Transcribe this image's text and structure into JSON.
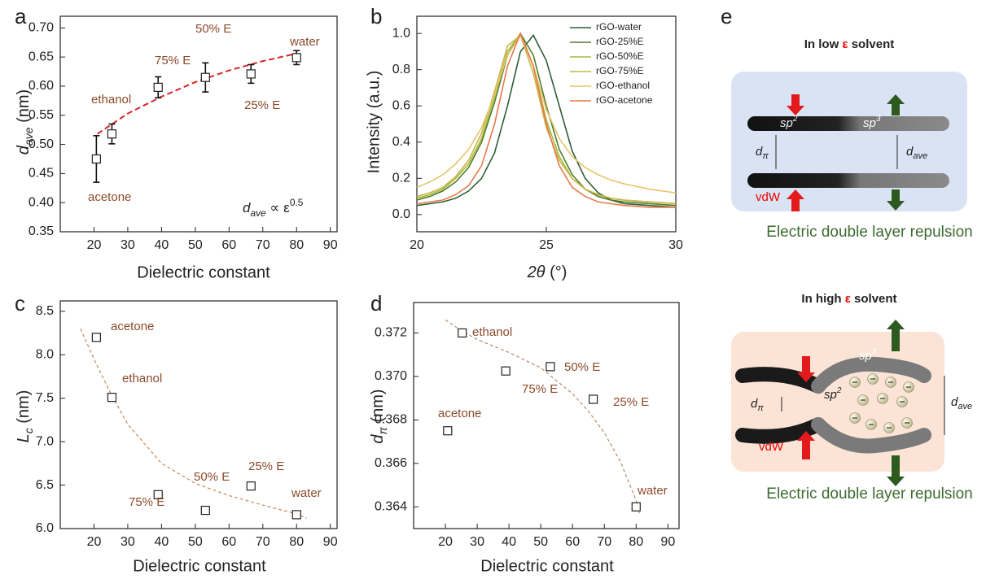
{
  "chart_data": [
    {
      "type": "scatter",
      "panel_label": "a",
      "xlabel": "Dielectric constant",
      "ylabel": [
        "d",
        "ave",
        " (nm)"
      ],
      "annotation": [
        "d",
        "ave",
        " ∝ ε",
        "0.5"
      ],
      "x": [
        20.7,
        25.3,
        39,
        53,
        66.5,
        80
      ],
      "values": [
        0.475,
        0.518,
        0.598,
        0.615,
        0.621,
        0.649
      ],
      "errors": [
        0.04,
        0.017,
        0.018,
        0.025,
        0.016,
        0.012
      ],
      "point_labels": [
        "acetone",
        "ethanol",
        "75% E",
        "50% E",
        "25% E",
        "water"
      ],
      "label_color": "#8b4a2b",
      "fit": {
        "x": [
          21,
          30,
          40,
          50,
          60,
          70,
          80
        ],
        "values": [
          0.518,
          0.553,
          0.582,
          0.607,
          0.627,
          0.643,
          0.656
        ],
        "color": "#d62728"
      },
      "xlim": [
        10,
        92
      ],
      "xticks": [
        20,
        30,
        40,
        50,
        60,
        70,
        80,
        90
      ],
      "ylim": [
        0.35,
        0.72
      ],
      "yticks": [
        0.35,
        {
          "value": 0.4,
          "label": "0.40"
        },
        0.45,
        {
          "value": 0.5,
          "label": "0.50"
        },
        0.55,
        {
          "value": 0.6,
          "label": "0.60"
        },
        0.65,
        {
          "value": 0.7,
          "label": "0.70"
        }
      ]
    },
    {
      "type": "line",
      "panel_label": "b",
      "xlabel": [
        "2θ",
        " (°)"
      ],
      "ylabel": "Intensity (a.u.)",
      "legend": "upper right",
      "x": [
        20,
        20.5,
        21,
        21.5,
        22,
        22.5,
        23,
        23.5,
        24,
        24.5,
        25,
        25.5,
        26,
        26.5,
        27,
        27.5,
        28,
        29,
        30
      ],
      "series": [
        {
          "name": "rGO-water",
          "color": "#2f5d34",
          "values": [
            0.05,
            0.06,
            0.07,
            0.09,
            0.13,
            0.2,
            0.34,
            0.6,
            0.9,
            0.99,
            0.85,
            0.6,
            0.35,
            0.2,
            0.12,
            0.08,
            0.06,
            0.05,
            0.04
          ]
        },
        {
          "name": "rGO-25%E",
          "color": "#4f7d2a",
          "values": [
            0.08,
            0.1,
            0.13,
            0.18,
            0.26,
            0.4,
            0.62,
            0.88,
            1.0,
            0.88,
            0.6,
            0.36,
            0.22,
            0.14,
            0.1,
            0.08,
            0.07,
            0.06,
            0.05
          ]
        },
        {
          "name": "rGO-50%E",
          "color": "#a3b83a",
          "values": [
            0.09,
            0.11,
            0.14,
            0.2,
            0.28,
            0.42,
            0.65,
            0.9,
            1.0,
            0.82,
            0.52,
            0.32,
            0.2,
            0.14,
            0.11,
            0.09,
            0.08,
            0.07,
            0.06
          ]
        },
        {
          "name": "rGO-75%E",
          "color": "#c9b544",
          "values": [
            0.1,
            0.12,
            0.15,
            0.21,
            0.3,
            0.45,
            0.68,
            0.93,
            0.99,
            0.78,
            0.48,
            0.3,
            0.2,
            0.14,
            0.11,
            0.09,
            0.08,
            0.07,
            0.06
          ]
        },
        {
          "name": "rGO-ethanol",
          "color": "#e8c36a",
          "values": [
            0.15,
            0.18,
            0.22,
            0.28,
            0.36,
            0.48,
            0.66,
            0.88,
            0.99,
            0.82,
            0.58,
            0.42,
            0.32,
            0.26,
            0.22,
            0.19,
            0.17,
            0.14,
            0.12
          ]
        },
        {
          "name": "rGO-acetone",
          "color": "#e8794a",
          "values": [
            0.06,
            0.07,
            0.08,
            0.11,
            0.16,
            0.27,
            0.5,
            0.82,
            1.0,
            0.82,
            0.5,
            0.27,
            0.15,
            0.1,
            0.07,
            0.06,
            0.05,
            0.04,
            0.04
          ]
        }
      ],
      "xlim": [
        20,
        30
      ],
      "xticks": [
        20,
        25,
        30
      ],
      "ylim": [
        -0.095,
        1.095
      ],
      "yticks": [
        {
          "value": 0,
          "label": "0.0"
        },
        0.2,
        0.4,
        0.6,
        0.8,
        {
          "value": 1,
          "label": "1.0"
        }
      ]
    },
    {
      "type": "scatter",
      "panel_label": "c",
      "xlabel": "Dielectric constant",
      "ylabel": [
        "L",
        "c",
        " (nm)"
      ],
      "x": [
        20.7,
        25.3,
        39,
        53,
        66.5,
        80
      ],
      "values": [
        8.2,
        7.51,
        6.39,
        6.21,
        6.49,
        6.16
      ],
      "point_labels": [
        "acetone",
        "ethanol",
        "75% E",
        "50% E",
        "25% E",
        "water"
      ],
      "label_color": "#8b4a2b",
      "fit": {
        "x": [
          16,
          20,
          25,
          30,
          40,
          50,
          60,
          70,
          80,
          83
        ],
        "values": [
          8.3,
          7.95,
          7.55,
          7.2,
          6.75,
          6.52,
          6.38,
          6.27,
          6.17,
          6.12
        ],
        "color": "#c8875a"
      },
      "xlim": [
        10,
        92
      ],
      "xticks": [
        20,
        30,
        40,
        50,
        60,
        70,
        80,
        90
      ],
      "ylim": [
        6.0,
        8.62
      ],
      "yticks": [
        {
          "value": 6,
          "label": "6.0"
        },
        6.5,
        {
          "value": 7,
          "label": "7.0"
        },
        7.5,
        {
          "value": 8,
          "label": "8.0"
        },
        8.5
      ]
    },
    {
      "type": "scatter",
      "panel_label": "d",
      "xlabel": "Dielectric constant",
      "ylabel": [
        "d",
        "π",
        " (nm)"
      ],
      "x": [
        20.7,
        25.3,
        39,
        53,
        66.5,
        80
      ],
      "values": [
        0.3675,
        0.372,
        0.37025,
        0.37045,
        0.36895,
        0.364
      ],
      "point_labels": [
        "acetone",
        "ethanol",
        "75% E",
        "50% E",
        "25% E",
        "water"
      ],
      "label_color": "#8b4a2b",
      "fit": {
        "x": [
          20,
          25,
          30,
          40,
          50,
          60,
          65,
          70,
          75,
          80,
          81
        ],
        "values": [
          0.3726,
          0.3721,
          0.3717,
          0.3711,
          0.3704,
          0.3692,
          0.3684,
          0.3674,
          0.3661,
          0.3643,
          0.3637
        ],
        "color": "#b88a70"
      },
      "xlim": [
        10,
        93.5
      ],
      "xticks": [
        20,
        30,
        40,
        50,
        60,
        70,
        80,
        90
      ],
      "ylim": [
        0.363,
        0.3734
      ],
      "yticks": [
        0.364,
        0.366,
        0.368,
        {
          "value": 0.37,
          "label": "0.370"
        },
        0.372
      ]
    }
  ],
  "diagram": {
    "panel_label": "e",
    "panels": [
      {
        "title": [
          "In low ",
          "ε",
          " solvent"
        ],
        "sp2": [
          "sp",
          "2"
        ],
        "sp3": [
          "sp",
          "3"
        ],
        "d_pi": [
          "d",
          "π"
        ],
        "d_ave": [
          "d",
          "ave"
        ],
        "vdw": "vdW",
        "caption": "Electric double layer repulsion"
      },
      {
        "title": [
          "In high ",
          "ε",
          " solvent"
        ],
        "sp2": [
          "sp",
          "2"
        ],
        "sp3": [
          "sp",
          "3"
        ],
        "d_pi": [
          "d",
          "π"
        ],
        "d_ave": [
          "d",
          "ave"
        ],
        "vdw": "vdW",
        "caption": "Electric double layer repulsion"
      }
    ]
  }
}
